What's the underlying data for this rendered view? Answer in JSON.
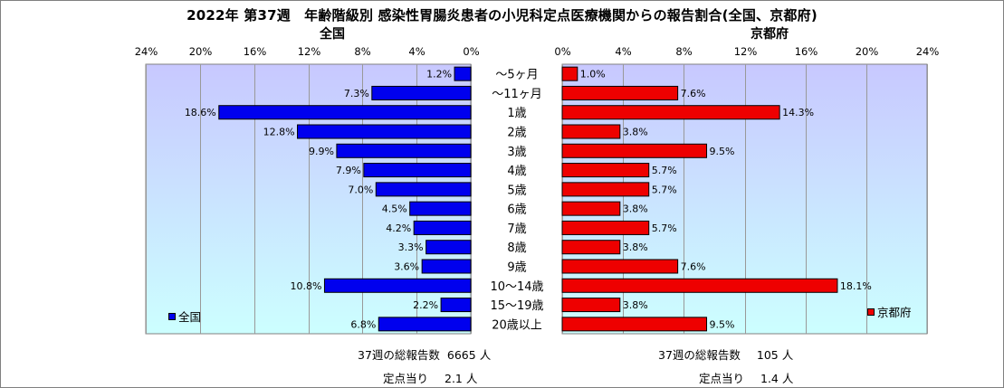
{
  "title": "2022年 第37週　年齢階級別 感染性胃腸炎患者の小児科定点医療機関からの報告割合(全国、京都府)",
  "colors": {
    "national": "#0000ee",
    "kyoto": "#ee0000",
    "plot_bg_top": "#c8c8ff",
    "plot_bg_bottom": "#ccffff",
    "grid": "#999999"
  },
  "chart_data": [
    {
      "type": "bar",
      "orientation": "horizontal",
      "direction": "right-to-left",
      "title": "全国",
      "series": [
        {
          "name": "全国",
          "values": [
            1.2,
            7.3,
            18.6,
            12.8,
            9.9,
            7.9,
            7.0,
            4.5,
            4.2,
            3.3,
            3.6,
            10.8,
            2.2,
            6.8
          ]
        }
      ],
      "categories": [
        "～5ヶ月",
        "～11ヶ月",
        "1歳",
        "2歳",
        "3歳",
        "4歳",
        "5歳",
        "6歳",
        "7歳",
        "8歳",
        "9歳",
        "10～14歳",
        "15～19歳",
        "20歳以上"
      ],
      "data_labels": [
        "1.2%",
        "7.3%",
        "18.6%",
        "12.8%",
        "9.9%",
        "7.9%",
        "7.0%",
        "4.5%",
        "4.2%",
        "3.3%",
        "3.6%",
        "10.8%",
        "2.2%",
        "6.8%"
      ],
      "xlim": [
        0,
        24
      ],
      "xticks": [
        "0%",
        "4%",
        "8%",
        "12%",
        "16%",
        "20%",
        "24%"
      ],
      "grid": true,
      "legend": "bottom-left"
    },
    {
      "type": "bar",
      "orientation": "horizontal",
      "direction": "left-to-right",
      "title": "京都府",
      "series": [
        {
          "name": "京都府",
          "values": [
            1.0,
            7.6,
            14.3,
            3.8,
            9.5,
            5.7,
            5.7,
            3.8,
            5.7,
            3.8,
            7.6,
            18.1,
            3.8,
            9.5
          ]
        }
      ],
      "categories": [
        "～5ヶ月",
        "～11ヶ月",
        "1歳",
        "2歳",
        "3歳",
        "4歳",
        "5歳",
        "6歳",
        "7歳",
        "8歳",
        "9歳",
        "10～14歳",
        "15～19歳",
        "20歳以上"
      ],
      "data_labels": [
        "1.0%",
        "7.6%",
        "14.3%",
        "3.8%",
        "9.5%",
        "5.7%",
        "5.7%",
        "3.8%",
        "5.7%",
        "3.8%",
        "7.6%",
        "18.1%",
        "3.8%",
        "9.5%"
      ],
      "xlim": [
        0,
        24
      ],
      "xticks": [
        "0%",
        "4%",
        "8%",
        "12%",
        "16%",
        "20%",
        "24%"
      ],
      "grid": true,
      "legend": "bottom-right"
    }
  ],
  "footer": {
    "national_total_label": "37週の総報告数",
    "national_total_value": "6665",
    "national_total_unit": "人",
    "national_per_label": "定点当り",
    "national_per_value": "2.1",
    "national_per_unit": "人",
    "kyoto_total_label": "37週の総報告数",
    "kyoto_total_value": "105",
    "kyoto_total_unit": "人",
    "kyoto_per_label": "定点当り",
    "kyoto_per_value": "1.4",
    "kyoto_per_unit": "人"
  }
}
